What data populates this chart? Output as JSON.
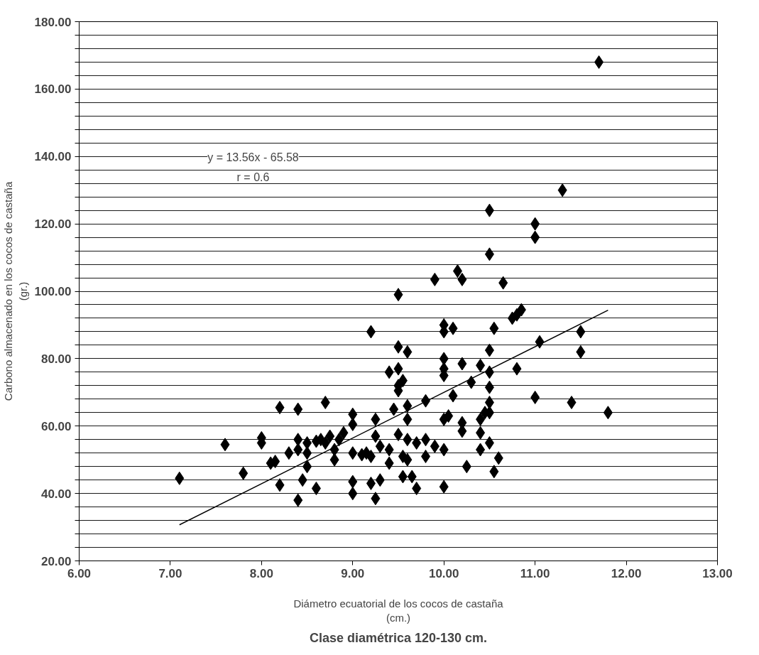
{
  "chart_data": {
    "type": "scatter",
    "title": "Clase diamétrica 120-130 cm.",
    "xlabel": "Diámetro ecuatorial de los cocos de castaña\n(cm.)",
    "ylabel": "Carbono almacenado en los cocos de castaña\n(gr.)",
    "marker": "diamond",
    "grid": "y",
    "xlim": [
      6,
      13
    ],
    "xticks": [
      {
        "value": 6,
        "label": "6.00"
      },
      {
        "value": 7,
        "label": "7.00"
      },
      {
        "value": 8,
        "label": "8.00"
      },
      {
        "value": 9,
        "label": "9.00"
      },
      {
        "value": 10,
        "label": "10.00"
      },
      {
        "value": 11,
        "label": "11.00"
      },
      {
        "value": 12,
        "label": "12.00"
      },
      {
        "value": 13,
        "label": "13.00"
      }
    ],
    "ylim": [
      20,
      180
    ],
    "yticks": [
      {
        "value": 20,
        "label": "20.00"
      },
      {
        "value": 24,
        "label": null
      },
      {
        "value": 28,
        "label": null
      },
      {
        "value": 32,
        "label": null
      },
      {
        "value": 36,
        "label": null
      },
      {
        "value": 40,
        "label": "40.00"
      },
      {
        "value": 44,
        "label": null
      },
      {
        "value": 48,
        "label": null
      },
      {
        "value": 52,
        "label": null
      },
      {
        "value": 56,
        "label": null
      },
      {
        "value": 60,
        "label": "60.00"
      },
      {
        "value": 64,
        "label": null
      },
      {
        "value": 68,
        "label": null
      },
      {
        "value": 72,
        "label": null
      },
      {
        "value": 76,
        "label": null
      },
      {
        "value": 80,
        "label": "80.00"
      },
      {
        "value": 84,
        "label": null
      },
      {
        "value": 88,
        "label": null
      },
      {
        "value": 92,
        "label": null
      },
      {
        "value": 96,
        "label": null
      },
      {
        "value": 100,
        "label": "100.00"
      },
      {
        "value": 104,
        "label": null
      },
      {
        "value": 108,
        "label": null
      },
      {
        "value": 112,
        "label": null
      },
      {
        "value": 116,
        "label": null
      },
      {
        "value": 120,
        "label": "120.00"
      },
      {
        "value": 124,
        "label": null
      },
      {
        "value": 128,
        "label": null
      },
      {
        "value": 132,
        "label": null
      },
      {
        "value": 136,
        "label": null
      },
      {
        "value": 140,
        "label": "140.00"
      },
      {
        "value": 144,
        "label": null
      },
      {
        "value": 148,
        "label": null
      },
      {
        "value": 152,
        "label": null
      },
      {
        "value": 156,
        "label": null
      },
      {
        "value": 160,
        "label": "160.00"
      },
      {
        "value": 164,
        "label": null
      },
      {
        "value": 168,
        "label": null
      },
      {
        "value": 172,
        "label": null
      },
      {
        "value": 176,
        "label": null
      },
      {
        "value": 180,
        "label": "180.00"
      }
    ],
    "annotations": [
      "y = 13.56x - 65.58",
      "r = 0.6"
    ],
    "series": [
      {
        "color": "#000000",
        "x": [
          7.1,
          7.6,
          7.8,
          8.0,
          8.0,
          8.1,
          8.15,
          8.2,
          8.2,
          8.3,
          8.4,
          8.4,
          8.4,
          8.4,
          8.45,
          8.5,
          8.5,
          8.5,
          8.6,
          8.6,
          8.65,
          8.7,
          8.7,
          8.75,
          8.8,
          8.8,
          8.85,
          8.9,
          9.0,
          9.0,
          9.0,
          9.0,
          9.0,
          9.1,
          9.15,
          9.2,
          9.2,
          9.2,
          9.25,
          9.25,
          9.25,
          9.3,
          9.3,
          9.4,
          9.4,
          9.4,
          9.45,
          9.5,
          9.5,
          9.5,
          9.5,
          9.5,
          9.5,
          9.55,
          9.55,
          9.55,
          9.6,
          9.6,
          9.6,
          9.6,
          9.6,
          9.65,
          9.7,
          9.7,
          9.8,
          9.8,
          9.8,
          9.9,
          9.9,
          10.0,
          10.0,
          10.0,
          10.0,
          10.0,
          10.0,
          10.0,
          10.0,
          10.05,
          10.1,
          10.1,
          10.15,
          10.2,
          10.2,
          10.2,
          10.2,
          10.25,
          10.3,
          10.4,
          10.4,
          10.4,
          10.4,
          10.45,
          10.5,
          10.5,
          10.5,
          10.5,
          10.5,
          10.5,
          10.5,
          10.5,
          10.55,
          10.55,
          10.6,
          10.65,
          10.75,
          10.8,
          10.8,
          10.85,
          11.0,
          11.0,
          11.0,
          11.05,
          11.3,
          11.4,
          11.5,
          11.5,
          11.7,
          11.8
        ],
        "values": [
          44.5,
          54.5,
          46,
          56.5,
          55,
          49,
          49.5,
          65.5,
          42.5,
          52,
          65,
          56,
          38,
          53,
          44,
          55,
          52,
          48,
          55.5,
          41.5,
          56,
          67,
          55,
          57,
          50,
          53,
          56,
          58,
          63.5,
          60.5,
          52,
          43.5,
          40,
          51.5,
          52,
          88,
          51,
          43,
          62,
          57,
          38.5,
          44,
          54,
          76,
          53,
          49,
          65,
          99,
          83.5,
          77,
          72,
          70.5,
          57.5,
          73.5,
          51,
          45,
          82,
          66,
          62,
          56,
          50,
          45,
          55,
          41.5,
          67.5,
          56,
          51,
          103.5,
          54,
          90,
          88,
          80,
          77,
          75,
          62,
          53,
          42,
          63,
          89,
          69,
          106,
          103.5,
          78.5,
          61,
          58.5,
          48,
          73,
          78,
          62,
          58,
          53,
          64,
          124,
          111,
          82.5,
          76,
          71.5,
          67,
          64,
          55,
          46.5,
          89,
          50.5,
          102.5,
          92,
          93,
          77,
          94.5,
          120,
          116,
          68.5,
          85,
          130,
          67,
          88,
          82,
          168,
          64
        ]
      },
      {
        "type": "line",
        "color": "#000000",
        "line_style": "solid",
        "marker": "none",
        "x": [
          7.1,
          11.8
        ],
        "values": [
          30.7,
          94.4
        ]
      }
    ]
  }
}
